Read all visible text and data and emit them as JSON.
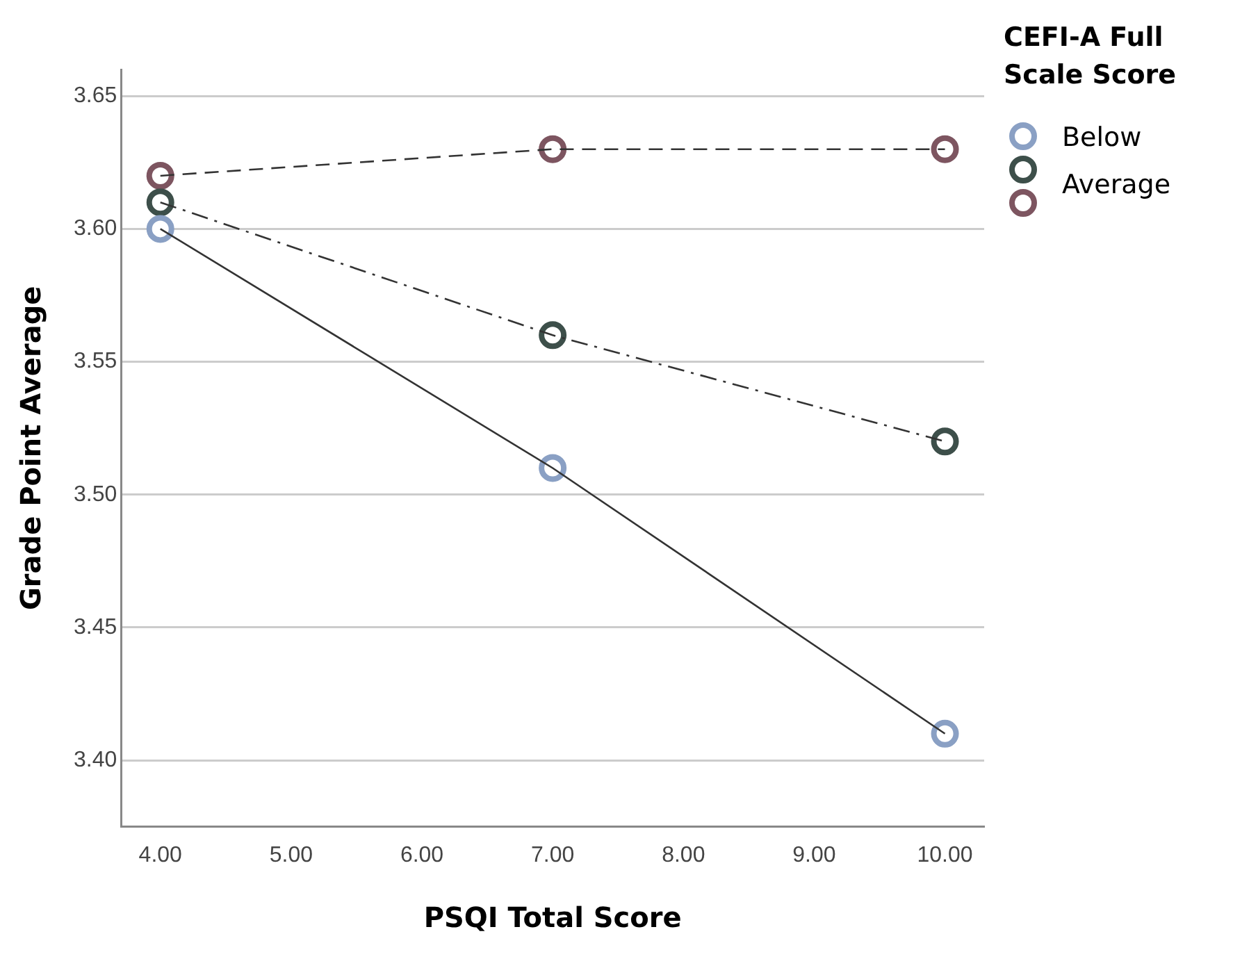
{
  "chart_data": {
    "type": "line",
    "xlabel": "PSQI Total Score",
    "ylabel": "Grade Point Average",
    "legend_title": "CEFI-A Full Scale Score",
    "x": [
      4,
      7,
      10
    ],
    "series": [
      {
        "name": "Below Average",
        "color": "#8aa0c4",
        "values": [
          3.6,
          3.51,
          3.41
        ],
        "line_style": "solid"
      },
      {
        "color": "#3d4f4a",
        "values": [
          3.61,
          3.56,
          3.52
        ],
        "line_style": "dashdot"
      },
      {
        "color": "#7d5560",
        "values": [
          3.62,
          3.63,
          3.63
        ],
        "line_style": "dashed"
      }
    ],
    "xlim": [
      3.7,
      10.3
    ],
    "xticks": [
      {
        "value": 4,
        "label": "4.00"
      },
      {
        "value": 5,
        "label": "5.00"
      },
      {
        "value": 6,
        "label": "6.00"
      },
      {
        "value": 7,
        "label": "7.00"
      },
      {
        "value": 8,
        "label": "8.00"
      },
      {
        "value": 9,
        "label": "9.00"
      },
      {
        "value": 10,
        "label": "10.00"
      }
    ],
    "ylim": [
      3.375,
      3.66
    ],
    "yticks": [
      {
        "value": 3.4,
        "label": "3.40"
      },
      {
        "value": 3.45,
        "label": "3.45"
      },
      {
        "value": 3.5,
        "label": "3.50"
      },
      {
        "value": 3.55,
        "label": "3.55"
      },
      {
        "value": 3.6,
        "label": "3.60"
      },
      {
        "value": 3.65,
        "label": "3.65"
      }
    ],
    "grid": "y",
    "legend": "top right",
    "marker": "circle"
  }
}
